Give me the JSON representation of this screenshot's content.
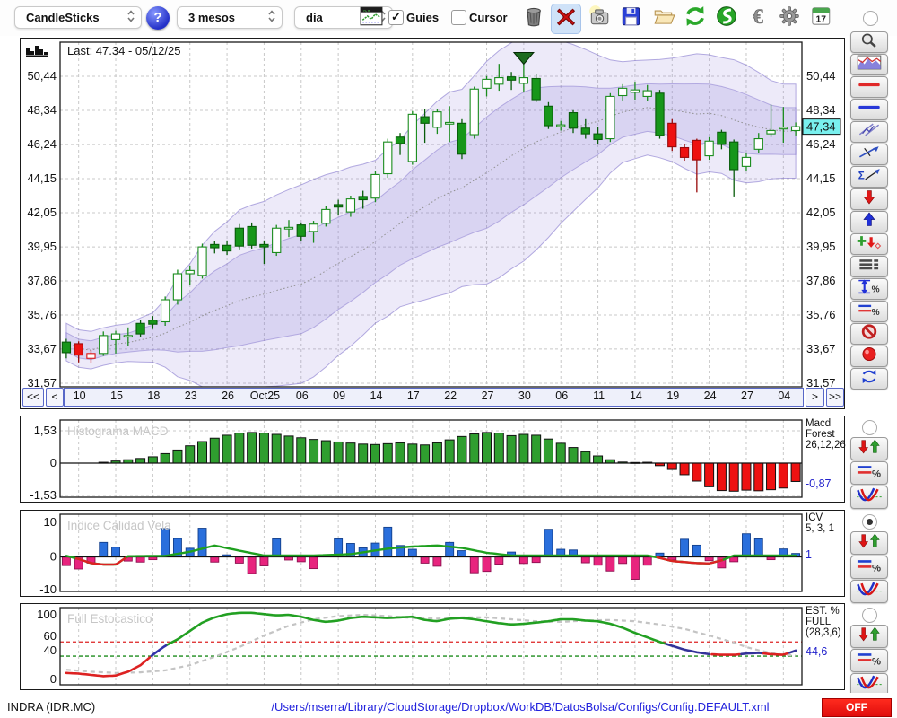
{
  "toolbar": {
    "chart_type": {
      "value": "CandleSticks"
    },
    "period": {
      "value": "3 mesos"
    },
    "interval": {
      "value": "dia"
    },
    "help_label": "?",
    "guies": {
      "label": "Guies",
      "checked": true
    },
    "cursor": {
      "label": "Cursor",
      "checked": false
    },
    "calendar_day": "17",
    "icons": [
      "trash",
      "delete",
      "snapshot",
      "save",
      "open",
      "refresh",
      "sync",
      "euro",
      "settings",
      "calendar"
    ]
  },
  "right_rail": {
    "icons": [
      "zoom",
      "panel-chart",
      "red-hline",
      "blue-hline",
      "channel",
      "trendline",
      "sigma-trend",
      "arrow-down",
      "arrow-up",
      "add-signal",
      "line-list",
      "vrange-percent",
      "levels-percent",
      "disable",
      "record",
      "refresh-blue"
    ]
  },
  "panel_controls": {
    "buttons": [
      "trend-arrows",
      "levels-percent",
      "oscillator-curve"
    ],
    "radios": [
      {
        "panel": "macd",
        "checked": false
      },
      {
        "panel": "icv",
        "checked": true
      },
      {
        "panel": "stoch",
        "checked": false
      }
    ]
  },
  "main_chart": {
    "last_label": "Last: 47.34 - 05/12/25",
    "last_price_label": "47,34",
    "nav": {
      "first": "<<",
      "prev": "<",
      "next": ">",
      "last": ">>"
    }
  },
  "status_bar": {
    "symbol": "INDRA (IDR.MC)",
    "config_path": "/Users/mserra/Library/CloudStorage/Dropbox/WorkDB/DatosBolsa/Configs/Config.DEFAULT.xml",
    "toggle_label": "OFF"
  },
  "colors": {
    "candle_up_fill": "#17961a",
    "candle_up_hollow": "#1a8c1d",
    "candle_down_fill": "#ee1111",
    "band": "#8d7ed8",
    "macd_pos": "#2f9e2f",
    "macd_neg": "#ee1111",
    "icv_pos": "#2a6fdc",
    "icv_neg": "#e8247e",
    "stoch_green": "#22a022",
    "stoch_red": "#dd2222",
    "stoch_navy": "#333399",
    "highlight_tag": "#79f0ee",
    "off_red": "#ee1111",
    "value_blue": "#2222cc"
  },
  "chart_data": [
    {
      "type": "candlestick",
      "name": "price",
      "last": 47.34,
      "last_date": "05/12/25",
      "y_ticks": [
        50.44,
        48.34,
        46.24,
        44.15,
        42.05,
        39.95,
        37.86,
        35.76,
        33.67,
        31.57
      ],
      "y_labels": [
        "50,44",
        "48,34",
        "46,24",
        "44,15",
        "42,05",
        "39,95",
        "37,86",
        "35,76",
        "33,67",
        "31,57"
      ],
      "x_labels": [
        "10",
        "15",
        "18",
        "23",
        "26",
        "Oct25",
        "06",
        "09",
        "14",
        "17",
        "22",
        "27",
        "30",
        "06",
        "11",
        "14",
        "19",
        "24",
        "27",
        "04"
      ],
      "x_tick_indices": [
        1,
        4,
        7,
        10,
        13,
        16,
        19,
        22,
        25,
        28,
        31,
        34,
        37,
        40,
        43,
        46,
        49,
        52,
        55,
        58
      ],
      "marker": {
        "index": 37,
        "price": 51.9,
        "shape": "triangle-down",
        "color": "#1d6b1f"
      },
      "bands": {
        "window": 20,
        "outer_mult": 2.1,
        "inner_mult": 1.05,
        "min_std": 0.55
      },
      "candles": [
        [
          33.45,
          34.3,
          33.1,
          34.1,
          "gf"
        ],
        [
          34.0,
          34.15,
          32.85,
          33.3,
          "rf"
        ],
        [
          33.1,
          33.6,
          32.8,
          33.4,
          "rh"
        ],
        [
          33.4,
          34.75,
          33.25,
          34.5,
          "gh"
        ],
        [
          34.25,
          34.8,
          33.4,
          34.6,
          "gh"
        ],
        [
          34.45,
          35.0,
          33.85,
          34.5,
          "gh"
        ],
        [
          34.6,
          35.45,
          34.4,
          35.25,
          "gf"
        ],
        [
          35.2,
          35.7,
          34.9,
          35.45,
          "gf"
        ],
        [
          35.35,
          36.9,
          35.1,
          36.7,
          "gh"
        ],
        [
          36.7,
          38.55,
          36.4,
          38.3,
          "gh"
        ],
        [
          38.3,
          38.8,
          37.6,
          38.5,
          "gh"
        ],
        [
          38.2,
          40.15,
          38.0,
          39.95,
          "gh"
        ],
        [
          39.9,
          40.3,
          39.55,
          40.1,
          "gf"
        ],
        [
          39.7,
          40.35,
          39.45,
          40.05,
          "gf"
        ],
        [
          40.0,
          41.35,
          39.8,
          41.1,
          "gf"
        ],
        [
          41.2,
          41.45,
          39.85,
          40.05,
          "gf"
        ],
        [
          40.1,
          40.35,
          38.9,
          39.95,
          "gf"
        ],
        [
          39.6,
          41.3,
          39.4,
          41.1,
          "gh"
        ],
        [
          41.05,
          41.6,
          40.55,
          41.15,
          "gh"
        ],
        [
          40.6,
          41.45,
          40.3,
          41.3,
          "gf"
        ],
        [
          40.9,
          41.55,
          40.2,
          41.35,
          "gh"
        ],
        [
          41.4,
          42.45,
          41.2,
          42.25,
          "gh"
        ],
        [
          42.4,
          42.85,
          41.9,
          42.55,
          "gf"
        ],
        [
          42.1,
          43.1,
          41.8,
          42.9,
          "gh"
        ],
        [
          42.85,
          43.4,
          42.3,
          43.05,
          "gf"
        ],
        [
          42.95,
          44.6,
          42.7,
          44.4,
          "gh"
        ],
        [
          44.45,
          46.6,
          44.2,
          46.4,
          "gh"
        ],
        [
          46.3,
          46.95,
          45.6,
          46.7,
          "gf"
        ],
        [
          45.2,
          48.3,
          45.0,
          48.1,
          "gh"
        ],
        [
          47.95,
          48.45,
          46.35,
          47.55,
          "gf"
        ],
        [
          47.3,
          48.4,
          46.9,
          48.25,
          "gh"
        ],
        [
          47.5,
          48.6,
          46.4,
          47.6,
          "gh"
        ],
        [
          47.55,
          47.8,
          45.35,
          45.65,
          "gf"
        ],
        [
          46.85,
          49.8,
          46.6,
          49.65,
          "gh"
        ],
        [
          49.7,
          50.45,
          49.2,
          50.25,
          "gh"
        ],
        [
          49.95,
          51.2,
          49.55,
          50.35,
          "gh"
        ],
        [
          50.2,
          50.7,
          49.6,
          50.4,
          "gf"
        ],
        [
          50.0,
          51.3,
          49.5,
          50.35,
          "gh"
        ],
        [
          50.3,
          50.55,
          48.85,
          49.0,
          "gf"
        ],
        [
          48.6,
          48.85,
          47.2,
          47.4,
          "gf"
        ],
        [
          47.35,
          47.7,
          47.1,
          47.45,
          "gh"
        ],
        [
          48.2,
          48.35,
          46.95,
          47.25,
          "gf"
        ],
        [
          47.25,
          47.8,
          46.6,
          46.9,
          "gf"
        ],
        [
          46.9,
          47.3,
          46.3,
          46.55,
          "gf"
        ],
        [
          46.6,
          49.4,
          46.4,
          49.2,
          "gh"
        ],
        [
          49.25,
          49.95,
          48.9,
          49.7,
          "gh"
        ],
        [
          49.6,
          50.1,
          49.0,
          49.45,
          "gh"
        ],
        [
          49.55,
          49.9,
          48.9,
          49.2,
          "gh"
        ],
        [
          49.4,
          49.6,
          46.6,
          46.8,
          "gf"
        ],
        [
          47.55,
          47.8,
          45.85,
          46.1,
          "rf"
        ],
        [
          46.05,
          46.3,
          45.25,
          45.45,
          "rf"
        ],
        [
          46.5,
          46.6,
          43.3,
          45.3,
          "rf"
        ],
        [
          45.55,
          46.7,
          45.3,
          46.45,
          "gh"
        ],
        [
          46.25,
          47.15,
          45.95,
          47.0,
          "gf"
        ],
        [
          46.4,
          46.55,
          43.05,
          44.7,
          "gf"
        ],
        [
          44.9,
          45.7,
          44.6,
          45.45,
          "gh"
        ],
        [
          45.95,
          46.95,
          45.7,
          46.6,
          "gh"
        ],
        [
          46.9,
          48.7,
          46.7,
          47.1,
          "gh"
        ],
        [
          47.2,
          48.55,
          46.35,
          47.3,
          "gh"
        ],
        [
          47.1,
          47.6,
          46.8,
          47.34,
          "gh"
        ]
      ]
    },
    {
      "type": "bar",
      "name": "Histograma MACD",
      "params_lines": [
        "Macd",
        "Forest",
        "26,12,26"
      ],
      "value_label": "-0,87",
      "y_ticks": [
        1.53,
        0,
        -1.53
      ],
      "y_labels": [
        "1,53",
        "0",
        "-1,53"
      ],
      "values": [
        0,
        0,
        0,
        0.04,
        0.1,
        0.16,
        0.22,
        0.3,
        0.45,
        0.62,
        0.82,
        1.02,
        1.18,
        1.32,
        1.42,
        1.45,
        1.42,
        1.36,
        1.28,
        1.2,
        1.12,
        1.06,
        1.0,
        0.95,
        0.9,
        0.88,
        0.92,
        0.96,
        0.9,
        0.86,
        0.96,
        1.1,
        1.26,
        1.38,
        1.45,
        1.42,
        1.3,
        1.36,
        1.32,
        1.14,
        0.94,
        0.74,
        0.54,
        0.34,
        0.16,
        0.05,
        0.03,
        0.04,
        -0.12,
        -0.3,
        -0.55,
        -0.85,
        -1.12,
        -1.3,
        -1.33,
        -1.28,
        -1.31,
        -1.26,
        -1.18,
        -0.87
      ]
    },
    {
      "type": "bar+line",
      "name": "Indice Calidad Vela",
      "params_lines": [
        "ICV",
        "5, 3, 1"
      ],
      "value_label": "1",
      "y_ticks": [
        10,
        0,
        -10
      ],
      "y_labels": [
        "10",
        "0",
        "-10"
      ],
      "bars": [
        -2.5,
        -3.5,
        -1.8,
        4.2,
        2.8,
        -1.2,
        -1.5,
        -0.8,
        8.2,
        5.3,
        2.5,
        8.3,
        -1.5,
        0.6,
        -1.8,
        -4.8,
        -2.6,
        5.2,
        -0.9,
        -1.4,
        -3.4,
        0.5,
        5.2,
        3.9,
        2.6,
        4.0,
        8.6,
        3.3,
        2.2,
        -1.8,
        -2.7,
        4.2,
        1.8,
        -4.6,
        -4.2,
        -2.1,
        1.4,
        -1.9,
        -1.6,
        8.0,
        2.2,
        2.0,
        -1.7,
        -2.4,
        -4.1,
        -1.9,
        -6.5,
        -2.4,
        1.1,
        -0.9,
        5.1,
        3.4,
        -1.1,
        -3.2,
        -1.4,
        6.7,
        5.2,
        -0.8,
        2.3,
        1.0
      ],
      "line_points": [
        [
          0,
          0.3
        ],
        [
          1,
          -0.6
        ],
        [
          2,
          -1.8
        ],
        [
          3,
          -2.2
        ],
        [
          4,
          -2.2
        ],
        [
          5,
          0.2
        ],
        [
          8,
          0.3
        ],
        [
          10,
          1.5
        ],
        [
          12,
          3.3
        ],
        [
          14,
          1.8
        ],
        [
          16,
          0.4
        ],
        [
          20,
          0.4
        ],
        [
          23,
          0.8
        ],
        [
          26,
          2.4
        ],
        [
          28,
          3.0
        ],
        [
          30,
          3.3
        ],
        [
          32,
          2.6
        ],
        [
          34,
          1.2
        ],
        [
          36,
          0.4
        ],
        [
          47,
          0.4
        ],
        [
          48,
          -0.3
        ],
        [
          49,
          -1.2
        ],
        [
          51,
          -1.8
        ],
        [
          52,
          -1.9
        ],
        [
          53,
          -1.0
        ],
        [
          54,
          0.4
        ],
        [
          59,
          0.4
        ]
      ],
      "line_red_ranges": [
        [
          0.8,
          4.8
        ],
        [
          47.8,
          53.2
        ]
      ]
    },
    {
      "type": "line",
      "name": "Full Estocastico",
      "params_lines": [
        "EST. %",
        "FULL",
        "(28,3,6)"
      ],
      "value_label": "44,6",
      "y_labels": [
        "100",
        "60",
        "40",
        "0"
      ],
      "thresholds": {
        "upper": 58,
        "lower": 36
      },
      "k_points": [
        [
          0,
          10
        ],
        [
          1,
          9
        ],
        [
          2,
          7
        ],
        [
          3,
          5
        ],
        [
          4,
          6
        ],
        [
          5,
          12
        ],
        [
          6,
          22
        ],
        [
          7,
          38
        ],
        [
          8,
          52
        ],
        [
          9,
          62
        ],
        [
          10,
          75
        ],
        [
          11,
          88
        ],
        [
          12,
          96
        ],
        [
          13,
          101
        ],
        [
          14,
          103
        ],
        [
          15,
          103
        ],
        [
          16,
          101
        ],
        [
          17,
          99
        ],
        [
          18,
          100
        ],
        [
          19,
          97
        ],
        [
          20,
          92
        ],
        [
          21,
          89
        ],
        [
          22,
          91
        ],
        [
          23,
          95
        ],
        [
          24,
          97
        ],
        [
          25,
          96
        ],
        [
          26,
          95
        ],
        [
          27,
          96
        ],
        [
          28,
          97
        ],
        [
          29,
          92
        ],
        [
          30,
          90
        ],
        [
          31,
          94
        ],
        [
          32,
          95
        ],
        [
          33,
          93
        ],
        [
          34,
          90
        ],
        [
          35,
          87
        ],
        [
          36,
          85
        ],
        [
          37,
          86
        ],
        [
          38,
          88
        ],
        [
          39,
          90
        ],
        [
          40,
          93
        ],
        [
          41,
          93
        ],
        [
          42,
          91
        ],
        [
          43,
          90
        ],
        [
          44,
          86
        ],
        [
          45,
          80
        ],
        [
          46,
          72
        ],
        [
          47,
          65
        ],
        [
          48,
          58
        ],
        [
          49,
          52
        ],
        [
          50,
          46
        ],
        [
          51,
          42
        ],
        [
          52,
          39
        ],
        [
          53,
          38
        ],
        [
          54,
          38
        ],
        [
          55,
          40
        ],
        [
          56,
          41
        ],
        [
          57,
          39
        ],
        [
          58,
          38
        ],
        [
          59,
          44.6
        ]
      ],
      "k_color_ranges": [
        {
          "c": "#dd2222",
          "a": 0,
          "b": 6.9
        },
        {
          "c": "#3333aa",
          "a": 6.9,
          "b": 8.2
        },
        {
          "c": "#22a022",
          "a": 8.2,
          "b": 48.5
        },
        {
          "c": "#333399",
          "a": 48.5,
          "b": 52.2
        },
        {
          "c": "#dd2222",
          "a": 52.2,
          "b": 54.6
        },
        {
          "c": "#333399",
          "a": 54.6,
          "b": 56.4
        },
        {
          "c": "#dd2222",
          "a": 56.4,
          "b": 58.5
        },
        {
          "c": "#333399",
          "a": 58.5,
          "b": 59
        }
      ],
      "d_points": [
        [
          0,
          15
        ],
        [
          2,
          12
        ],
        [
          4,
          10
        ],
        [
          6,
          11
        ],
        [
          8,
          14
        ],
        [
          10,
          22
        ],
        [
          12,
          35
        ],
        [
          14,
          50
        ],
        [
          16,
          68
        ],
        [
          18,
          83
        ],
        [
          20,
          93
        ],
        [
          22,
          98
        ],
        [
          24,
          100
        ],
        [
          26,
          98
        ],
        [
          28,
          95
        ],
        [
          30,
          94
        ],
        [
          32,
          96
        ],
        [
          34,
          96
        ],
        [
          36,
          93
        ],
        [
          38,
          90
        ],
        [
          40,
          89
        ],
        [
          42,
          91
        ],
        [
          44,
          92
        ],
        [
          46,
          90
        ],
        [
          48,
          85
        ],
        [
          50,
          78
        ],
        [
          52,
          68
        ],
        [
          54,
          57
        ],
        [
          55,
          50
        ],
        [
          56,
          45
        ],
        [
          57,
          41
        ],
        [
          58,
          38
        ],
        [
          59,
          37
        ]
      ]
    }
  ]
}
